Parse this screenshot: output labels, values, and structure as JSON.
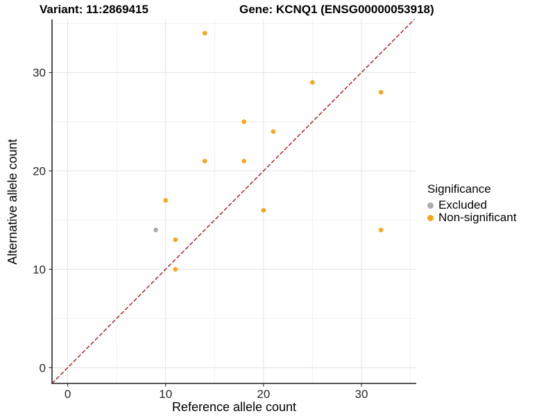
{
  "chart_data": {
    "type": "scatter",
    "title_left": "Variant: 11:2869415",
    "title_right": "Gene: KCNQ1 (ENSG00000053918)",
    "xlabel": "Reference allele count",
    "ylabel": "Alternative allele count",
    "x_ticks": [
      0,
      10,
      20,
      30
    ],
    "y_ticks": [
      0,
      10,
      20,
      30
    ],
    "x_minor": [
      5,
      15,
      25,
      35
    ],
    "y_minor": [
      5,
      15,
      25,
      35
    ],
    "xlim": [
      -1.6,
      35.6
    ],
    "ylim": [
      -1.6,
      35.4
    ],
    "grid": true,
    "legend": {
      "title": "Significance",
      "position": "right"
    },
    "identity_line": {
      "slope": 1,
      "intercept": 0,
      "style": "dashed",
      "color": "#8B1A1A"
    },
    "series": [
      {
        "name": "Excluded",
        "color": "#ABABAB",
        "points": [
          [
            9,
            14
          ]
        ]
      },
      {
        "name": "Non-significant",
        "color": "#FAA419",
        "points": [
          [
            14,
            34
          ],
          [
            25,
            29
          ],
          [
            32,
            28
          ],
          [
            18,
            25
          ],
          [
            21,
            24
          ],
          [
            18,
            21
          ],
          [
            14,
            21
          ],
          [
            10,
            17
          ],
          [
            20,
            16
          ],
          [
            32,
            14
          ],
          [
            11,
            13
          ],
          [
            11,
            10
          ]
        ]
      }
    ],
    "colors": {
      "points_orange": "#FAA419",
      "points_gray": "#ABABAB",
      "identity_line": "#8B1A1A",
      "gridline": "#E2E2E2",
      "axis_line": "#3C3C3C"
    }
  }
}
